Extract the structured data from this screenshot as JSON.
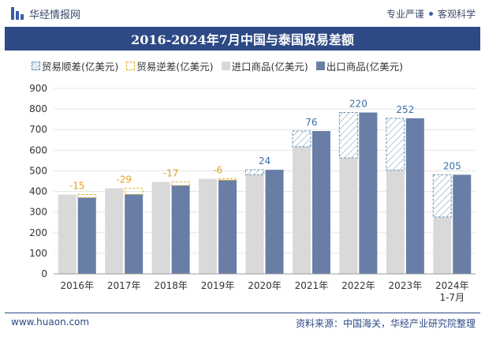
{
  "header": {
    "brand_name": "华经情报网",
    "tagline_left": "专业严谨",
    "tagline_right": "客观科学"
  },
  "footer": {
    "website": "www.huaon.com",
    "source": "资料来源：中国海关，华经产业研究院整理"
  },
  "colors": {
    "title_band": "#2d4a86",
    "import_bar": "#d9d9d9",
    "export_bar": "#687ea6",
    "surplus_border": "#6a8fb0",
    "deficit_border": "#e0b030",
    "surplus_label": "#3a6fa8",
    "deficit_label": "#e0a020"
  },
  "chart_data": {
    "type": "bar",
    "title": "2016-2024年7月中国与泰国贸易差额",
    "categories": [
      "2016年",
      "2017年",
      "2018年",
      "2019年",
      "2020年",
      "2021年",
      "2022年",
      "2023年",
      "2024年\n1-7月"
    ],
    "category_lines": [
      [
        "2016年"
      ],
      [
        "2017年"
      ],
      [
        "2018年"
      ],
      [
        "2019年"
      ],
      [
        "2020年"
      ],
      [
        "2021年"
      ],
      [
        "2022年"
      ],
      [
        "2023年"
      ],
      [
        "2024年",
        "1-7月"
      ]
    ],
    "series": [
      {
        "name": "进口商品(亿美元)",
        "values": [
          385,
          415,
          446,
          461,
          481,
          617,
          563,
          503,
          276
        ]
      },
      {
        "name": "出口商品(亿美元)",
        "values": [
          370,
          386,
          429,
          455,
          505,
          693,
          783,
          755,
          481
        ]
      }
    ],
    "balance_series": [
      {
        "name": "贸易顺差(亿美元)"
      },
      {
        "name": "贸易逆差(亿美元)"
      }
    ],
    "balance_values": [
      -15,
      -29,
      -17,
      -6,
      24,
      76,
      220,
      252,
      205
    ],
    "balance_labels": [
      "-15",
      "-29",
      "-17",
      "-6",
      "24",
      "76",
      "220",
      "252",
      "205"
    ],
    "yticks": [
      "0",
      "100",
      "200",
      "300",
      "400",
      "500",
      "600",
      "700",
      "800",
      "900"
    ],
    "ylim": [
      0,
      900
    ],
    "legend_position": "top",
    "grid": true,
    "xlabel": "",
    "ylabel": ""
  }
}
